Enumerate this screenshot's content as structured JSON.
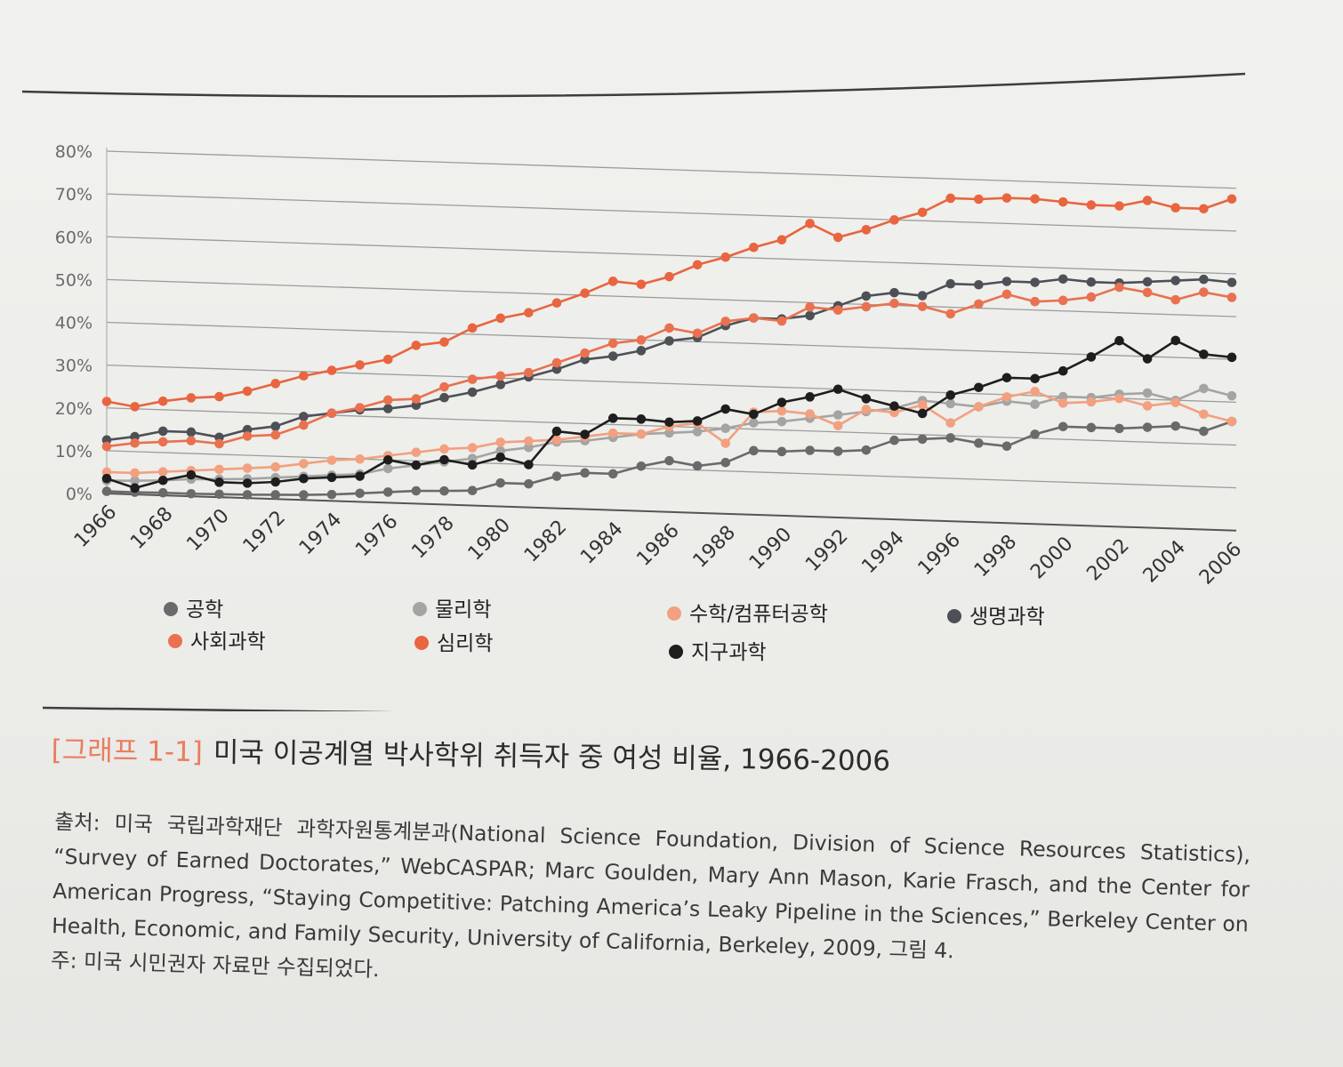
{
  "chart_data": {
    "type": "line",
    "x": [
      1966,
      1967,
      1968,
      1969,
      1970,
      1971,
      1972,
      1973,
      1974,
      1975,
      1976,
      1977,
      1978,
      1979,
      1980,
      1981,
      1982,
      1983,
      1984,
      1985,
      1986,
      1987,
      1988,
      1989,
      1990,
      1991,
      1992,
      1993,
      1994,
      1995,
      1996,
      1997,
      1998,
      1999,
      2000,
      2001,
      2002,
      2003,
      2004,
      2005,
      2006
    ],
    "x_tick_labels": [
      "1966",
      "1968",
      "1970",
      "1972",
      "1974",
      "1976",
      "1978",
      "1980",
      "1982",
      "1984",
      "1986",
      "1988",
      "1990",
      "1992",
      "1994",
      "1996",
      "1998",
      "2000",
      "2002",
      "2004",
      "2006"
    ],
    "y_tick_labels": [
      "0%",
      "10%",
      "20%",
      "30%",
      "40%",
      "50%",
      "60%",
      "70%",
      "80%"
    ],
    "ylim": [
      0,
      80
    ],
    "grid": "horizontal",
    "legend_position": "bottom",
    "series": [
      {
        "name": "공학",
        "color": "#6a6a6a",
        "marker": "dark-grey",
        "values": [
          0.5,
          0.5,
          0.6,
          0.6,
          0.7,
          0.8,
          1.0,
          1.2,
          1.5,
          2.0,
          2.5,
          3.0,
          3.2,
          3.5,
          5.5,
          5.5,
          7.5,
          8.5,
          8.5,
          10.5,
          12.0,
          11.0,
          12.0,
          15.0,
          15.0,
          15.5,
          15.5,
          16.0,
          18.5,
          19.0,
          19.5,
          18.5,
          18.0,
          21.0,
          23.0,
          23.0,
          23.0,
          23.5,
          24.0,
          23.0,
          25.5
        ]
      },
      {
        "name": "물리학",
        "color": "#a4a4a4",
        "marker": "light-grey",
        "values": [
          3.0,
          3.2,
          3.5,
          4.0,
          4.2,
          4.5,
          5.0,
          5.5,
          6.0,
          6.5,
          8.0,
          9.0,
          10.0,
          11.0,
          13.0,
          14.0,
          15.5,
          16.0,
          17.0,
          18.0,
          18.5,
          19.0,
          20.0,
          21.5,
          22.0,
          23.0,
          24.0,
          25.0,
          26.0,
          28.0,
          27.5,
          27.0,
          28.5,
          28.0,
          30.0,
          30.0,
          31.0,
          31.5,
          30.0,
          33.0,
          31.5
        ]
      },
      {
        "name": "수학/컴퓨터공학",
        "color": "#f2a07f",
        "marker": "light-orange",
        "values": [
          5.0,
          5.0,
          5.5,
          6.0,
          6.5,
          7.0,
          7.5,
          8.5,
          9.5,
          10.0,
          11.0,
          12.0,
          13.0,
          13.5,
          15.0,
          15.5,
          16.0,
          17.0,
          18.0,
          18.0,
          20.0,
          21.0,
          16.5,
          24.0,
          24.5,
          24.0,
          21.5,
          25.5,
          25.0,
          27.0,
          23.0,
          27.0,
          29.5,
          31.0,
          28.5,
          29.0,
          30.0,
          28.5,
          29.5,
          27.0,
          25.5
        ]
      },
      {
        "name": "생명과학",
        "color": "#4d5156",
        "marker": "slate",
        "values": [
          12.5,
          13.5,
          15.0,
          15.0,
          14.0,
          16.0,
          17.0,
          19.5,
          20.5,
          21.5,
          22.0,
          23.0,
          25.0,
          26.5,
          28.5,
          30.5,
          32.5,
          35.0,
          36.0,
          37.5,
          40.0,
          41.0,
          44.0,
          46.0,
          46.0,
          47.0,
          49.5,
          52.0,
          53.0,
          52.5,
          55.5,
          55.5,
          56.5,
          56.5,
          57.5,
          57.0,
          57.0,
          57.5,
          58.0,
          58.5,
          58.0
        ]
      },
      {
        "name": "사회과학",
        "color": "#e9714f",
        "marker": "orange",
        "values": [
          11.0,
          12.0,
          12.5,
          13.0,
          12.5,
          14.5,
          15.0,
          17.5,
          20.5,
          22.0,
          24.0,
          24.5,
          27.5,
          29.5,
          30.5,
          31.5,
          34.0,
          36.5,
          39.0,
          40.0,
          43.0,
          42.0,
          45.0,
          46.0,
          45.5,
          49.0,
          48.5,
          49.5,
          50.5,
          50.0,
          48.5,
          51.0,
          53.5,
          52.0,
          52.5,
          53.5,
          56.0,
          55.0,
          53.5,
          55.5,
          54.5
        ]
      },
      {
        "name": "심리학",
        "color": "#e8653f",
        "marker": "deep-orange",
        "values": [
          21.5,
          20.5,
          22.0,
          23.0,
          23.5,
          25.0,
          27.0,
          29.0,
          30.5,
          32.0,
          33.5,
          37.0,
          38.0,
          41.5,
          44.0,
          45.5,
          48.0,
          50.5,
          53.5,
          53.0,
          55.0,
          58.0,
          60.0,
          62.5,
          64.5,
          68.5,
          65.5,
          67.5,
          70.0,
          72.0,
          75.5,
          75.5,
          76.0,
          76.0,
          75.5,
          75.0,
          75.0,
          76.5,
          75.0,
          75.0,
          77.5
        ]
      },
      {
        "name": "지구과학",
        "color": "#1e1e1e",
        "marker": "black",
        "values": [
          3.5,
          1.5,
          3.5,
          5.0,
          3.5,
          3.5,
          4.0,
          5.0,
          5.5,
          6.0,
          10.0,
          9.0,
          10.5,
          9.5,
          11.5,
          10.0,
          18.0,
          17.5,
          21.5,
          21.5,
          21.0,
          21.5,
          24.5,
          23.5,
          26.5,
          28.0,
          30.0,
          28.0,
          26.5,
          25.0,
          29.5,
          31.5,
          34.0,
          34.0,
          36.0,
          39.5,
          43.5,
          39.5,
          44.0,
          41.0,
          40.5
        ]
      }
    ]
  },
  "caption": {
    "tag": "[그래프 1-1]",
    "title": "미국 이공계열 박사학위 취득자 중 여성 비율, 1966-2006"
  },
  "source": {
    "text": "출처: 미국 국립과학재단 과학자원통계분과(National Science Foundation, Division of Science Resources Statistics), “Survey of Earned Doctorates,” WebCASPAR; Marc Goulden, Mary Ann Mason, Karie Frasch, and the Center for American Progress, “Staying Competitive: Patching America’s Leaky Pipeline in the Sciences,” Berkeley Center on Health, Economic, and Family Security, University of California, Berkeley, 2009, 그림 4.",
    "note": "주: 미국 시민권자 자료만 수집되었다."
  }
}
